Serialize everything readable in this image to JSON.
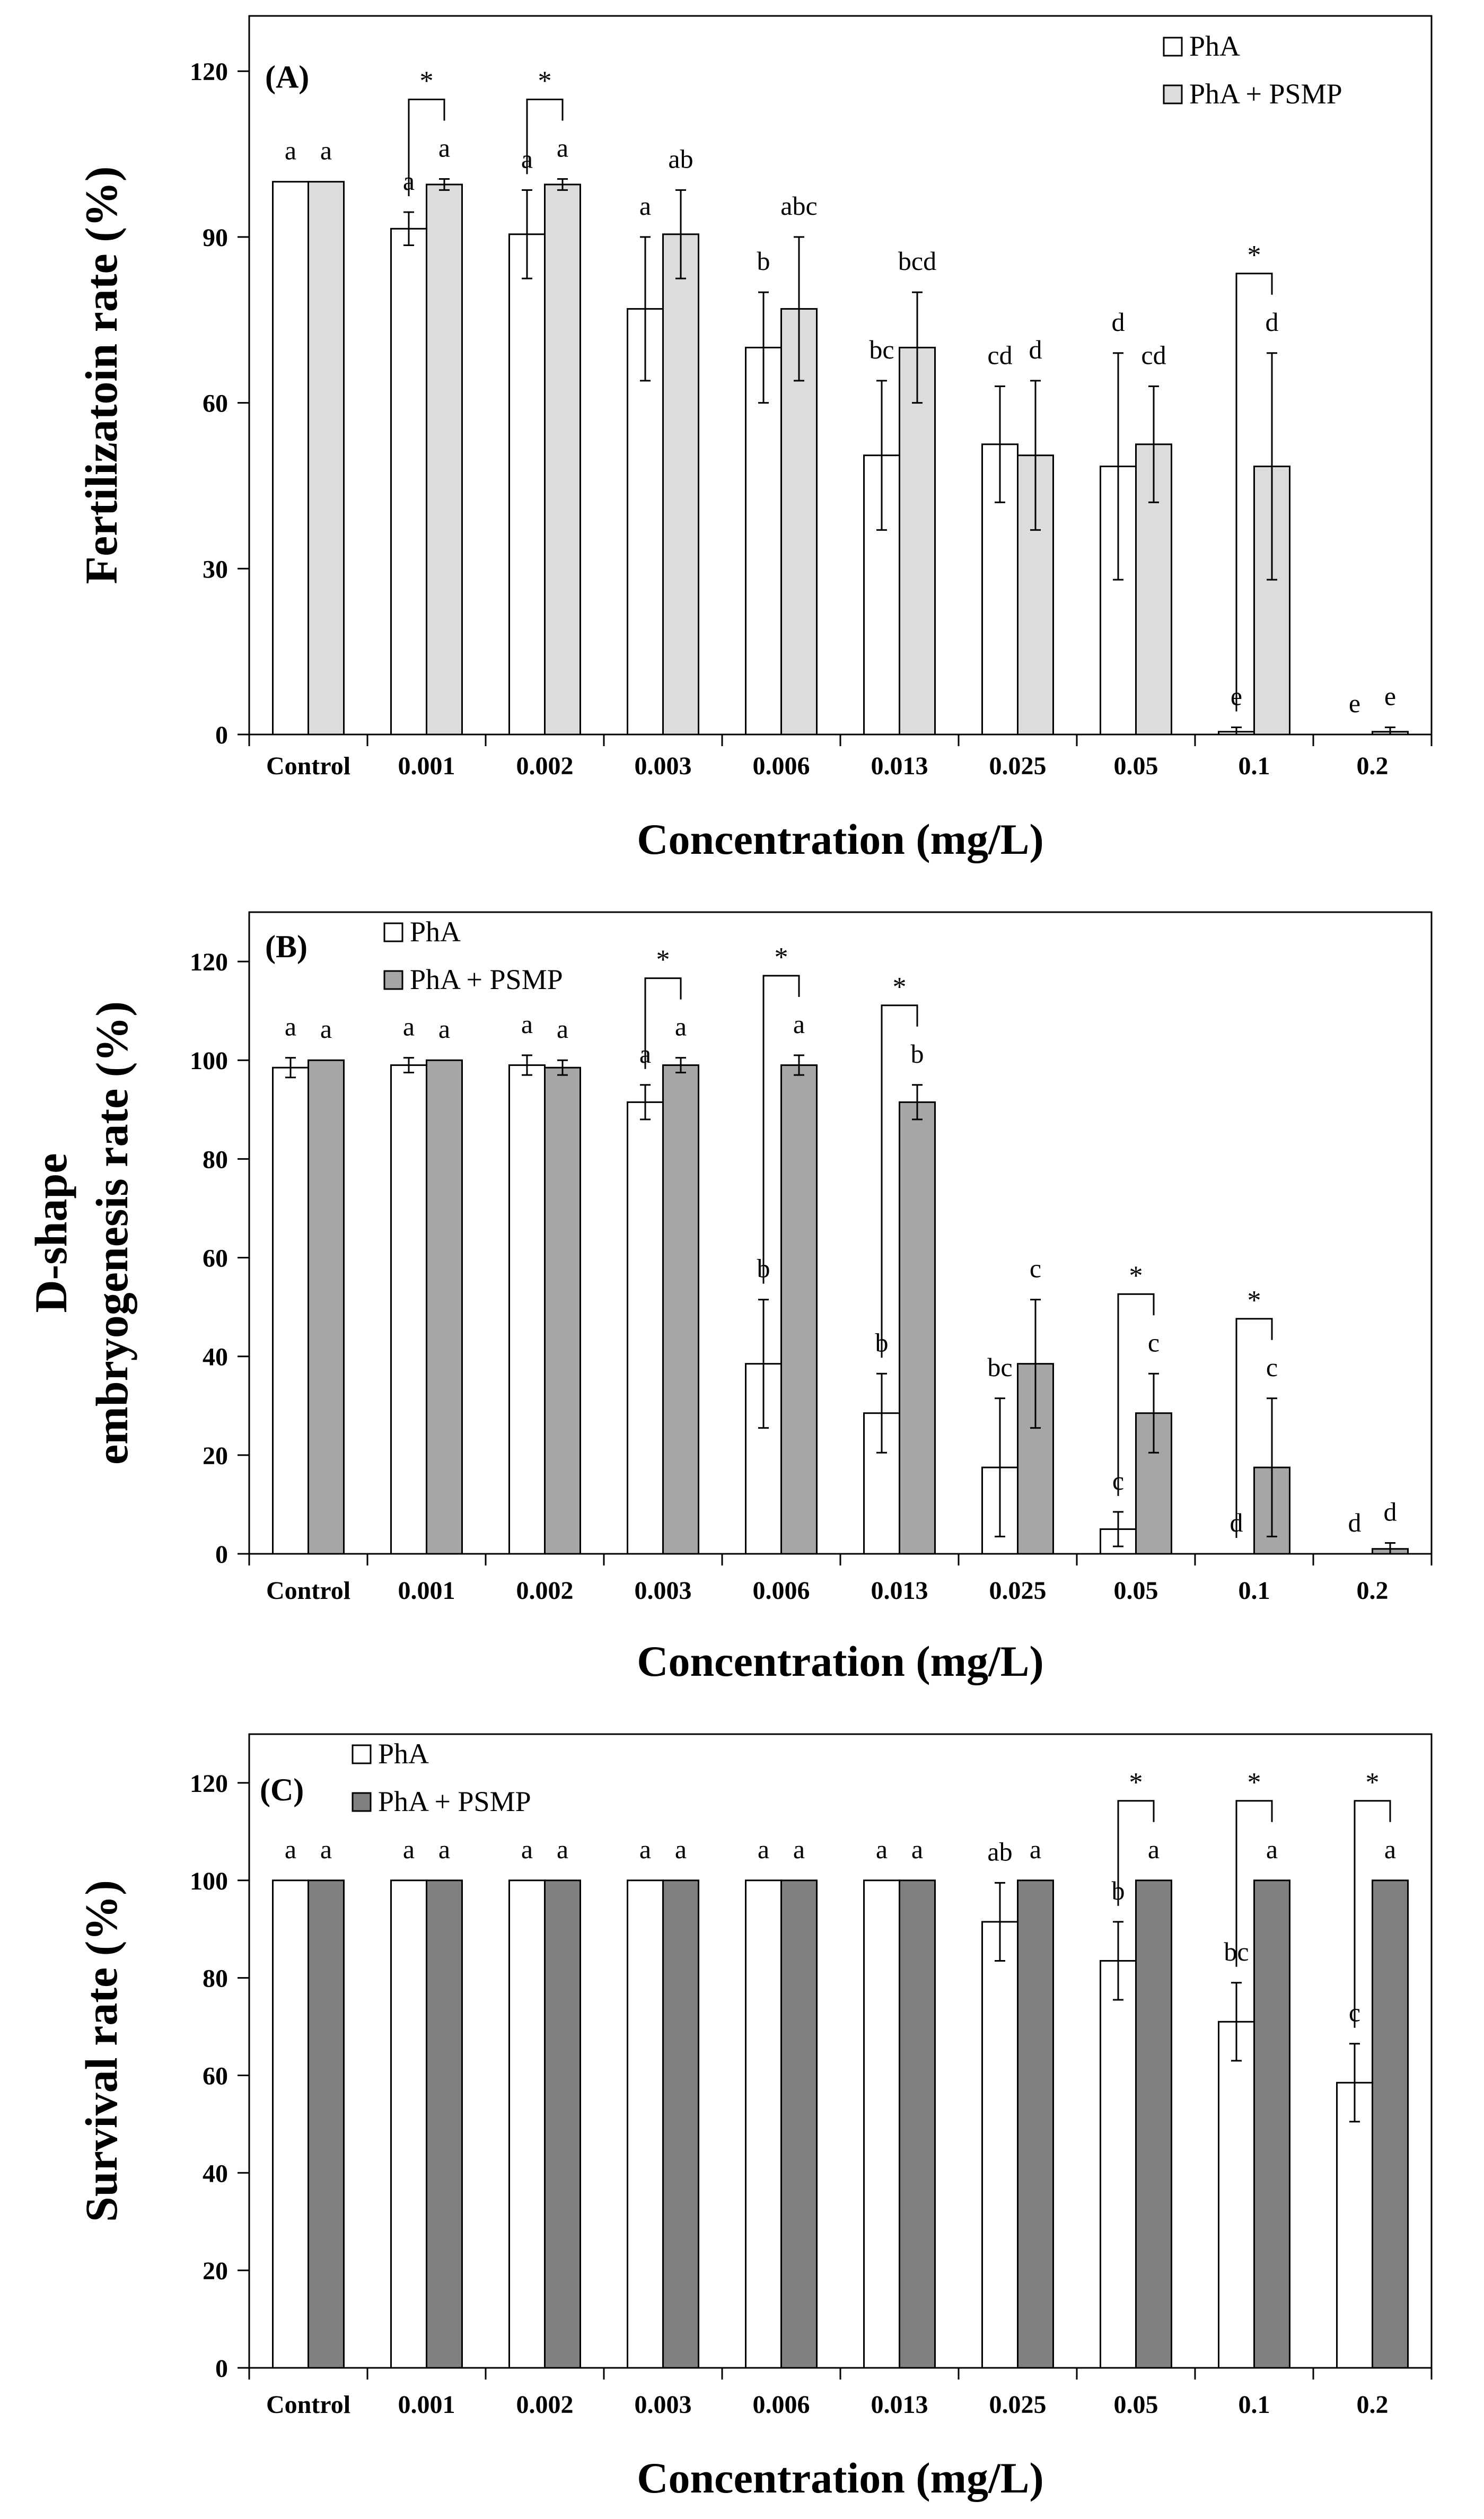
{
  "chart_data": [
    {
      "type": "bar",
      "panel_label": "(A)",
      "title": "",
      "xlabel": "Concentration (mg/L)",
      "ylabel": "Fertilizatoin rate (%)",
      "ylim": [
        0,
        130
      ],
      "yticks": [
        0,
        30,
        60,
        90,
        120
      ],
      "legend_position": "top-right",
      "categories": [
        "Control",
        "0.001",
        "0.002",
        "0.003",
        "0.006",
        "0.013",
        "0.025",
        "0.05",
        "0.1",
        "0.2"
      ],
      "colors": {
        "PhA": "#ffffff",
        "PhA + PSMP": "#dcdcdc"
      },
      "series": [
        {
          "name": "PhA",
          "values": [
            100,
            91.5,
            90.5,
            77,
            70,
            50.5,
            52.5,
            48.5,
            0.5,
            0
          ],
          "errors": [
            0,
            3,
            8,
            13,
            10,
            13.5,
            10.5,
            20.5,
            0.8,
            0
          ],
          "letters": [
            "a",
            "a",
            "a",
            "a",
            "b",
            "bc",
            "cd",
            "d",
            "e",
            "e"
          ]
        },
        {
          "name": "PhA + PSMP",
          "values": [
            100,
            99.5,
            99.5,
            90.5,
            77,
            70,
            50.5,
            52.5,
            48.5,
            0.5
          ],
          "errors": [
            0,
            1,
            1,
            8,
            13,
            10,
            13.5,
            10.5,
            20.5,
            0.8
          ],
          "letters": [
            "a",
            "a",
            "a",
            "ab",
            "abc",
            "bcd",
            "d",
            "cd",
            "d",
            "e"
          ]
        }
      ],
      "significance": [
        {
          "category": "0.001",
          "label": "*"
        },
        {
          "category": "0.002",
          "label": "*"
        },
        {
          "category": "0.1",
          "label": "*"
        }
      ]
    },
    {
      "type": "bar",
      "panel_label": "(B)",
      "title": "",
      "xlabel": "Concentration (mg/L)",
      "ylabel": [
        "D-shape",
        "embryogenesis rate (%)"
      ],
      "ylim": [
        0,
        130
      ],
      "yticks": [
        0,
        20,
        40,
        60,
        80,
        100,
        120
      ],
      "legend_position": "top-left",
      "categories": [
        "Control",
        "0.001",
        "0.002",
        "0.003",
        "0.006",
        "0.013",
        "0.025",
        "0.05",
        "0.1",
        "0.2"
      ],
      "colors": {
        "PhA": "#ffffff",
        "PhA + PSMP": "#a6a6a6"
      },
      "series": [
        {
          "name": "PhA",
          "values": [
            98.5,
            99,
            99,
            91.5,
            38.5,
            28.5,
            17.5,
            5,
            0,
            0
          ],
          "errors": [
            2,
            1.5,
            2,
            3.5,
            13,
            8,
            14,
            3.5,
            0,
            0
          ],
          "letters": [
            "a",
            "a",
            "a",
            "a",
            "b",
            "b",
            "bc",
            "c",
            "d",
            "d"
          ]
        },
        {
          "name": "PhA + PSMP",
          "values": [
            100,
            100,
            98.5,
            99,
            99,
            91.5,
            38.5,
            28.5,
            17.5,
            1
          ],
          "errors": [
            0,
            0,
            1.5,
            1.5,
            2,
            3.5,
            13,
            8,
            14,
            1.2
          ],
          "letters": [
            "a",
            "a",
            "a",
            "a",
            "a",
            "b",
            "c",
            "c",
            "c",
            "d"
          ]
        }
      ],
      "significance": [
        {
          "category": "0.003",
          "label": "*"
        },
        {
          "category": "0.006",
          "label": "*"
        },
        {
          "category": "0.013",
          "label": "*"
        },
        {
          "category": "0.05",
          "label": "*"
        },
        {
          "category": "0.1",
          "label": "*"
        }
      ]
    },
    {
      "type": "bar",
      "panel_label": "(C)",
      "title": "",
      "xlabel": "Concentration (mg/L)",
      "ylabel": "Survival rate (%)",
      "ylim": [
        0,
        130
      ],
      "yticks": [
        0,
        20,
        40,
        60,
        80,
        100,
        120
      ],
      "legend_position": "top-left",
      "categories": [
        "Control",
        "0.001",
        "0.002",
        "0.003",
        "0.006",
        "0.013",
        "0.025",
        "0.05",
        "0.1",
        "0.2"
      ],
      "colors": {
        "PhA": "#ffffff",
        "PhA + PSMP": "#808080"
      },
      "series": [
        {
          "name": "PhA",
          "values": [
            100,
            100,
            100,
            100,
            100,
            100,
            91.5,
            83.5,
            71,
            58.5
          ],
          "errors": [
            0,
            0,
            0,
            0,
            0,
            0,
            8,
            8,
            8,
            8
          ],
          "letters": [
            "a",
            "a",
            "a",
            "a",
            "a",
            "a",
            "ab",
            "b",
            "bc",
            "c"
          ]
        },
        {
          "name": "PhA + PSMP",
          "values": [
            100,
            100,
            100,
            100,
            100,
            100,
            100,
            100,
            100,
            100
          ],
          "errors": [
            0,
            0,
            0,
            0,
            0,
            0,
            0,
            0,
            0,
            0
          ],
          "letters": [
            "a",
            "a",
            "a",
            "a",
            "a",
            "a",
            "a",
            "a",
            "a",
            "a"
          ]
        }
      ],
      "significance": [
        {
          "category": "0.05",
          "label": "*"
        },
        {
          "category": "0.1",
          "label": "*"
        },
        {
          "category": "0.2",
          "label": "*"
        }
      ]
    }
  ]
}
